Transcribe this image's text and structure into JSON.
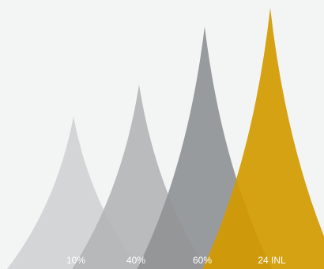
{
  "chart_data": {
    "type": "area",
    "title": "",
    "xlabel": "",
    "ylabel": "",
    "grid": false,
    "legend": "none",
    "categories": [
      "10%",
      "40%",
      "60%",
      "24 INL"
    ],
    "values": [
      10,
      40,
      60,
      24
    ],
    "heights_relative": [
      0.59,
      0.71,
      0.93,
      1.0
    ],
    "colors": [
      "#d4d5d6",
      "#b4b5b6",
      "#909395",
      "#d39a00"
    ]
  }
}
